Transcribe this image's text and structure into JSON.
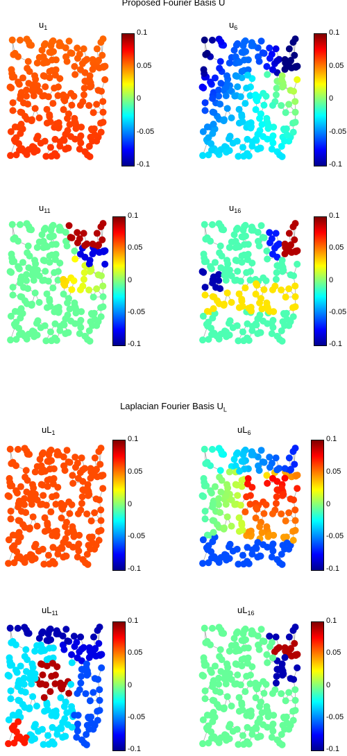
{
  "figure": {
    "section1": {
      "title_text": "Proposed Fourier Basis U"
    },
    "section2": {
      "title_main": "Laplacian Fourier Basis U",
      "title_sub": "L"
    },
    "colorbar_ticks": [
      "0.1",
      "0.05",
      "0",
      "-0.05",
      "-0.1"
    ],
    "panels": [
      {
        "base": "u",
        "sub": "1"
      },
      {
        "base": "u",
        "sub": "6"
      },
      {
        "base": "u",
        "sub": "11"
      },
      {
        "base": "u",
        "sub": "16"
      },
      {
        "base": "uL",
        "sub": "1"
      },
      {
        "base": "uL",
        "sub": "6"
      },
      {
        "base": "uL",
        "sub": "11"
      },
      {
        "base": "uL",
        "sub": "16"
      }
    ],
    "colors": {
      "edge": "#a8a8a8",
      "colormap": "jet"
    }
  }
}
